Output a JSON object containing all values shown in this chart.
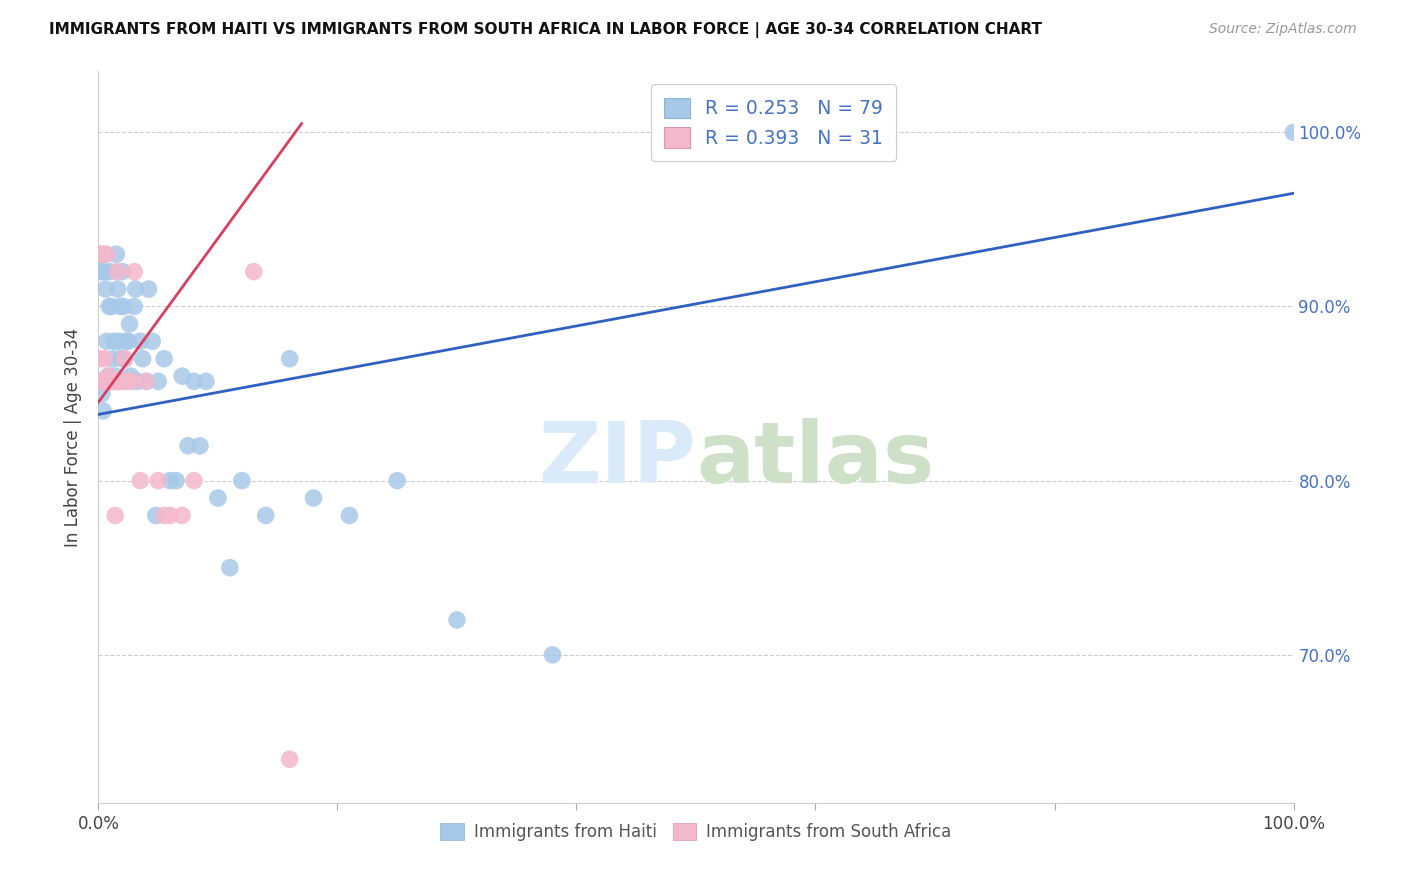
{
  "title": "IMMIGRANTS FROM HAITI VS IMMIGRANTS FROM SOUTH AFRICA IN LABOR FORCE | AGE 30-34 CORRELATION CHART",
  "source": "Source: ZipAtlas.com",
  "ylabel": "In Labor Force | Age 30-34",
  "xlim": [
    0.0,
    1.0
  ],
  "ylim": [
    0.615,
    1.035
  ],
  "ytick_positions": [
    0.7,
    0.8,
    0.9,
    1.0
  ],
  "ytick_labels": [
    "70.0%",
    "80.0%",
    "90.0%",
    "100.0%"
  ],
  "haiti_R": "0.253",
  "haiti_N": "79",
  "sa_R": "0.393",
  "sa_N": "31",
  "haiti_color": "#a8c8e8",
  "sa_color": "#f4b8cc",
  "haiti_line_color": "#3060c0",
  "sa_line_color": "#d84060",
  "haiti_x": [
    0.0,
    0.0,
    0.0,
    0.0,
    0.002,
    0.002,
    0.003,
    0.003,
    0.004,
    0.004,
    0.005,
    0.005,
    0.005,
    0.006,
    0.006,
    0.007,
    0.007,
    0.008,
    0.008,
    0.009,
    0.009,
    0.01,
    0.01,
    0.01,
    0.011,
    0.011,
    0.012,
    0.012,
    0.013,
    0.013,
    0.014,
    0.014,
    0.015,
    0.015,
    0.016,
    0.016,
    0.017,
    0.018,
    0.018,
    0.019,
    0.02,
    0.02,
    0.021,
    0.022,
    0.023,
    0.024,
    0.025,
    0.026,
    0.027,
    0.028,
    0.03,
    0.031,
    0.033,
    0.035,
    0.037,
    0.04,
    0.042,
    0.045,
    0.048,
    0.05,
    0.055,
    0.06,
    0.065,
    0.07,
    0.075,
    0.08,
    0.085,
    0.09,
    0.1,
    0.11,
    0.12,
    0.14,
    0.16,
    0.18,
    0.21,
    0.25,
    0.3,
    0.38,
    1.0
  ],
  "haiti_y": [
    0.857,
    0.857,
    0.93,
    0.92,
    0.857,
    0.92,
    0.857,
    0.85,
    0.857,
    0.84,
    0.857,
    0.93,
    0.92,
    0.857,
    0.91,
    0.857,
    0.88,
    0.857,
    0.86,
    0.857,
    0.9,
    0.857,
    0.857,
    0.92,
    0.857,
    0.9,
    0.857,
    0.87,
    0.857,
    0.88,
    0.857,
    0.86,
    0.857,
    0.93,
    0.857,
    0.91,
    0.88,
    0.857,
    0.9,
    0.87,
    0.857,
    0.92,
    0.9,
    0.87,
    0.88,
    0.857,
    0.88,
    0.89,
    0.86,
    0.857,
    0.9,
    0.91,
    0.857,
    0.88,
    0.87,
    0.857,
    0.91,
    0.88,
    0.78,
    0.857,
    0.87,
    0.8,
    0.8,
    0.86,
    0.82,
    0.857,
    0.82,
    0.857,
    0.79,
    0.75,
    0.8,
    0.78,
    0.87,
    0.79,
    0.78,
    0.8,
    0.72,
    0.7,
    1.0
  ],
  "sa_x": [
    0.0,
    0.0,
    0.0,
    0.002,
    0.003,
    0.004,
    0.005,
    0.006,
    0.007,
    0.008,
    0.009,
    0.01,
    0.012,
    0.014,
    0.015,
    0.016,
    0.018,
    0.02,
    0.022,
    0.025,
    0.028,
    0.03,
    0.035,
    0.04,
    0.05,
    0.055,
    0.06,
    0.07,
    0.08,
    0.13,
    0.16
  ],
  "sa_y": [
    0.857,
    0.93,
    0.87,
    0.857,
    0.93,
    0.857,
    0.87,
    0.857,
    0.93,
    0.857,
    0.86,
    0.857,
    0.857,
    0.78,
    0.857,
    0.92,
    0.857,
    0.857,
    0.87,
    0.857,
    0.857,
    0.92,
    0.8,
    0.857,
    0.8,
    0.78,
    0.78,
    0.78,
    0.8,
    0.92,
    0.64
  ],
  "haiti_line_x0": 0.0,
  "haiti_line_x1": 1.0,
  "haiti_line_y0": 0.838,
  "haiti_line_y1": 0.965,
  "sa_line_x0": 0.0,
  "sa_line_x1": 0.17,
  "sa_line_y0": 0.845,
  "sa_line_y1": 1.005
}
